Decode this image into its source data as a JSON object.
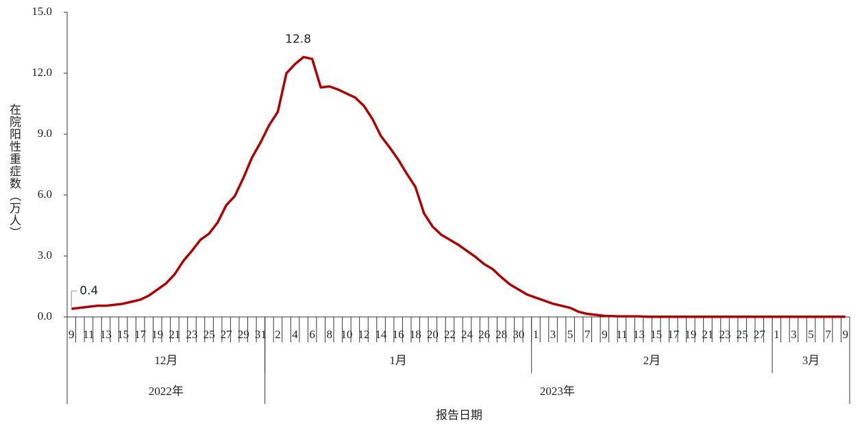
{
  "chart_data": {
    "type": "line",
    "y_label": "在院阳性重症数（万人）",
    "x_label": "报告日期",
    "categories": [
      "9",
      null,
      "11",
      null,
      "13",
      null,
      "15",
      null,
      "17",
      null,
      "19",
      null,
      "21",
      null,
      "23",
      null,
      "25",
      null,
      "27",
      null,
      "29",
      null,
      "31",
      null,
      "2",
      null,
      "4",
      null,
      "6",
      null,
      "8",
      null,
      "10",
      null,
      "12",
      null,
      "14",
      null,
      "16",
      null,
      "18",
      null,
      "20",
      null,
      "22",
      null,
      "24",
      null,
      "26",
      null,
      "28",
      null,
      "30",
      null,
      "1",
      null,
      "3",
      null,
      "5",
      null,
      "7",
      null,
      "9",
      null,
      "11",
      null,
      "13",
      null,
      "15",
      null,
      "17",
      null,
      "19",
      null,
      "21",
      null,
      "23",
      null,
      "25",
      null,
      "27",
      null,
      "1",
      null,
      "3",
      null,
      "5",
      null,
      "7",
      null,
      "9"
    ],
    "months": [
      {
        "label": "12月",
        "days": 23
      },
      {
        "label": "1月",
        "days": 31
      },
      {
        "label": "2月",
        "days": 28
      },
      {
        "label": "3月",
        "days": 9
      }
    ],
    "years": [
      {
        "label": "2022年",
        "days": 23
      },
      {
        "label": "2023年",
        "days": 68
      }
    ],
    "series": [
      {
        "color": "#b40000",
        "values": [
          0.4,
          0.45,
          0.5,
          0.55,
          0.55,
          0.6,
          0.65,
          0.75,
          0.85,
          1.05,
          1.35,
          1.65,
          2.1,
          2.75,
          3.25,
          3.8,
          4.1,
          4.65,
          5.5,
          5.95,
          6.85,
          7.85,
          8.6,
          9.45,
          10.1,
          12.0,
          12.45,
          12.8,
          12.7,
          11.3,
          11.35,
          11.2,
          11.0,
          10.8,
          10.4,
          9.75,
          8.9,
          8.35,
          7.75,
          7.05,
          6.4,
          5.1,
          4.45,
          4.05,
          3.8,
          3.55,
          3.25,
          2.95,
          2.6,
          2.35,
          1.95,
          1.6,
          1.35,
          1.1,
          0.95,
          0.8,
          0.65,
          0.55,
          0.45,
          0.25,
          0.15,
          0.1,
          0.05,
          0.04,
          0.03,
          0.03,
          0.03,
          0.01,
          0.01,
          0.01,
          0.01,
          0.01,
          0.01,
          0.01,
          0.01,
          0.01,
          0.01,
          0.01,
          0.01,
          0.01,
          0.01,
          0.01,
          0.01,
          0.01,
          0.01,
          0.01,
          0.01,
          0.01,
          0.01,
          0.01,
          0.01
        ],
        "value_labels": [
          "0.4",
          null,
          null,
          null,
          null,
          null,
          null,
          null,
          null,
          null,
          null,
          null,
          null,
          null,
          null,
          null,
          null,
          null,
          null,
          null,
          null,
          null,
          null,
          null,
          null,
          null,
          null,
          "12.8",
          null,
          null,
          null,
          null,
          null,
          null,
          null,
          null,
          null,
          null,
          null,
          null,
          null,
          null,
          null,
          null,
          null,
          null,
          null,
          null,
          null,
          null,
          null,
          null,
          null,
          null,
          null,
          null,
          null,
          null,
          null,
          null,
          null,
          null,
          null,
          null,
          null,
          null,
          null,
          null,
          null,
          null,
          null,
          null,
          null,
          null,
          null,
          null,
          null,
          null,
          null,
          null,
          null,
          null,
          null,
          null,
          null,
          null,
          null,
          null,
          null,
          null,
          null
        ]
      }
    ],
    "ylim": [
      0,
      15
    ],
    "yticks": [
      {
        "value": 0,
        "label": "0.0"
      },
      {
        "value": 3,
        "label": "3.0"
      },
      {
        "value": 6,
        "label": "6.0"
      },
      {
        "value": 9,
        "label": "9.0"
      },
      {
        "value": 12,
        "label": "12.0"
      },
      {
        "value": 15,
        "label": "15.0"
      }
    ],
    "grid": false
  }
}
